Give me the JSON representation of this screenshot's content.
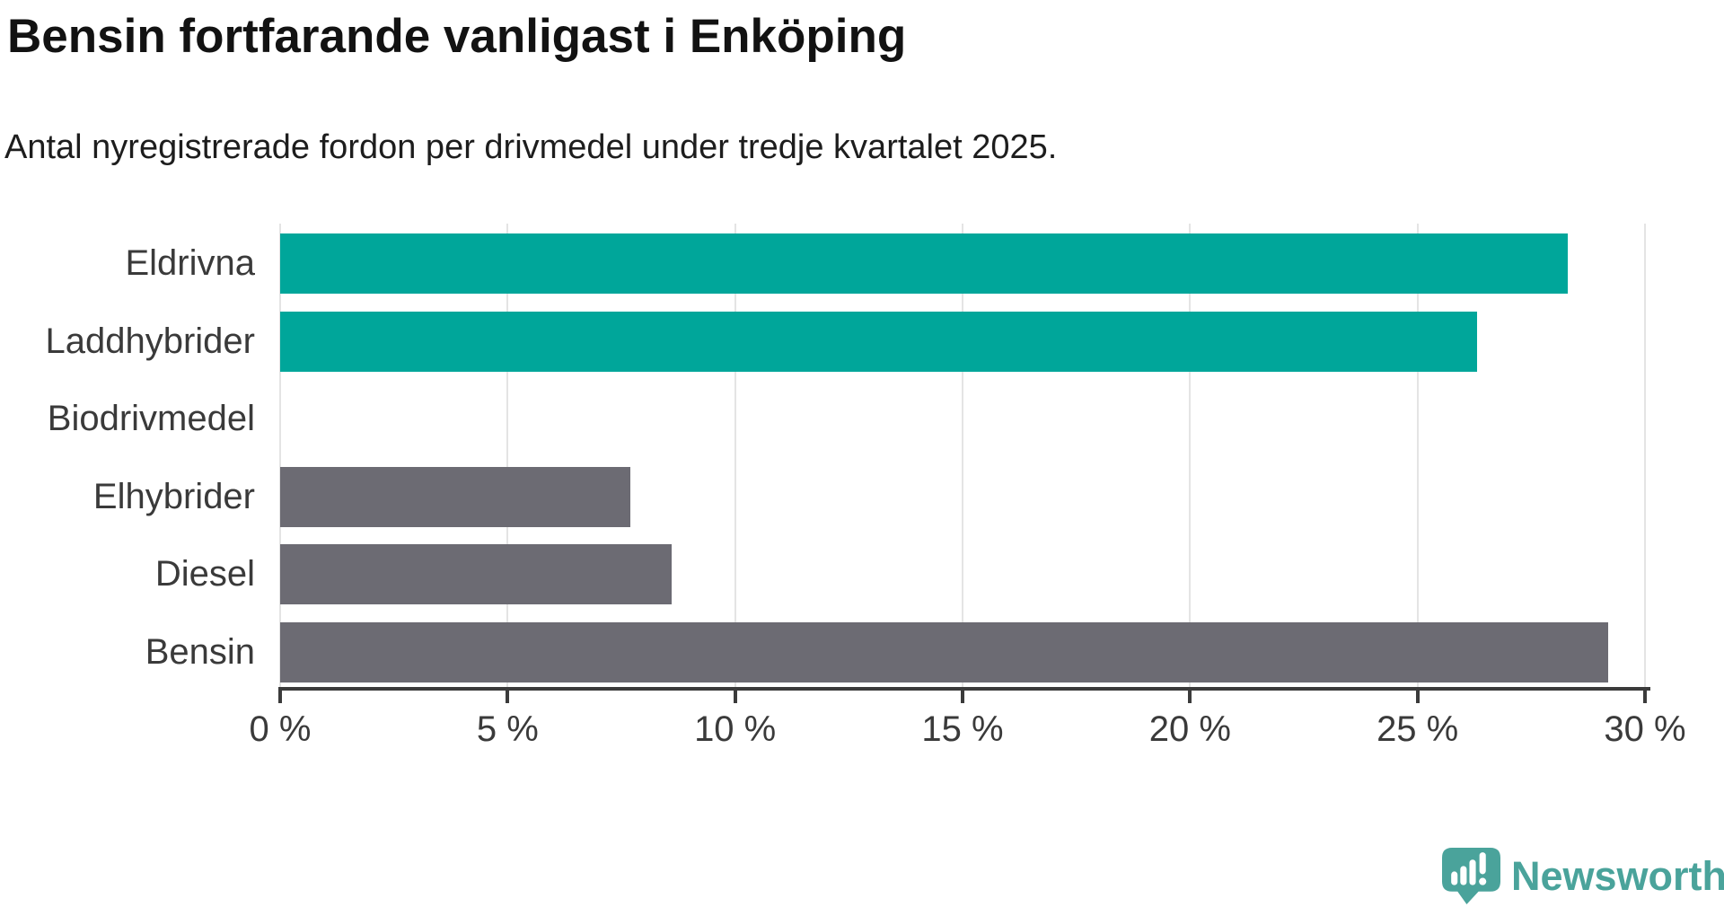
{
  "chart_data": {
    "type": "bar",
    "orientation": "horizontal",
    "title": "Bensin fortfarande vanligast i Enköping",
    "subtitle": "Antal nyregistrerade fordon per drivmedel under tredje kvartalet 2025.",
    "categories": [
      "Eldrivna",
      "Laddhybrider",
      "Biodrivmedel",
      "Elhybrider",
      "Diesel",
      "Bensin"
    ],
    "values": [
      28.3,
      26.3,
      0,
      7.7,
      8.6,
      29.2
    ],
    "unit": "%",
    "bar_colors": [
      "#00a69a",
      "#00a69a",
      "#00a69a",
      "#6c6b73",
      "#6c6b73",
      "#6c6b73"
    ],
    "highlight_color": "#00a69a",
    "default_color": "#6c6b73",
    "xlim": [
      0,
      30
    ],
    "xticks": [
      0,
      5,
      10,
      15,
      20,
      25,
      30
    ],
    "xtick_labels": [
      "0 %",
      "5 %",
      "10 %",
      "15 %",
      "20 %",
      "25 %",
      "30 %"
    ],
    "grid": "vertical-light",
    "legend": "none"
  },
  "branding": {
    "logo_label": "Newsworthy",
    "logo_color": "#4aa39b",
    "logo_icon": "speech-bubble-bar-chart-icon"
  }
}
